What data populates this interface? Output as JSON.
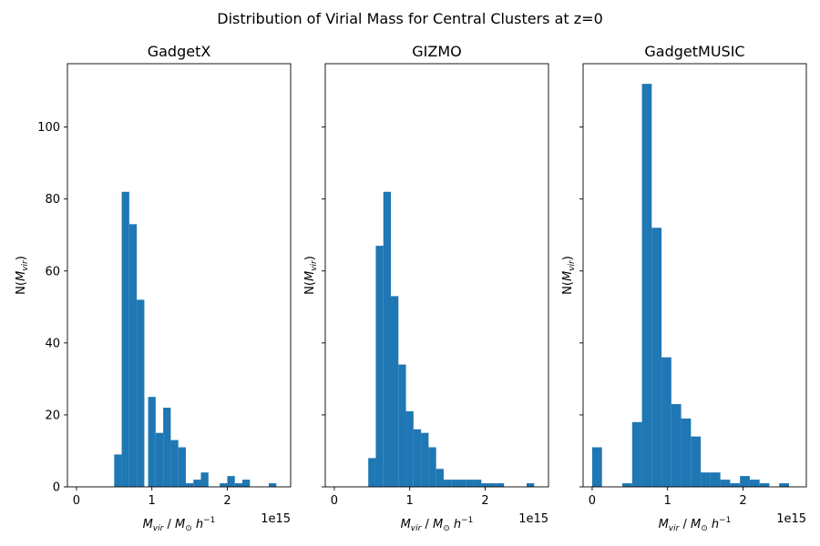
{
  "figure": {
    "suptitle": "Distribution of Virial Mass for Central Clusters at z=0"
  },
  "chart_data": [
    {
      "type": "bar",
      "title": "GadgetX",
      "xlabel": "M_vir / M_⊙ h^-1",
      "ylabel": "N(M_vir)",
      "x_offset_label": "1e15",
      "xlim": [
        -0.12,
        2.84
      ],
      "ylim": [
        0,
        117.6
      ],
      "xticks": [
        0,
        1,
        2
      ],
      "yticks": [
        0,
        20,
        40,
        60,
        80,
        100
      ],
      "color": "#1f77b4",
      "bin_width": 0.1,
      "bins": [
        {
          "x0": 0.5,
          "count": 9
        },
        {
          "x0": 0.6,
          "count": 82
        },
        {
          "x0": 0.7,
          "count": 73
        },
        {
          "x0": 0.8,
          "count": 52
        },
        {
          "x0": 0.95,
          "count": 25
        },
        {
          "x0": 1.05,
          "count": 15
        },
        {
          "x0": 1.15,
          "count": 22
        },
        {
          "x0": 1.25,
          "count": 13
        },
        {
          "x0": 1.35,
          "count": 11
        },
        {
          "x0": 1.45,
          "count": 1
        },
        {
          "x0": 1.55,
          "count": 2
        },
        {
          "x0": 1.65,
          "count": 4
        },
        {
          "x0": 1.9,
          "count": 1
        },
        {
          "x0": 2.0,
          "count": 3
        },
        {
          "x0": 2.1,
          "count": 1
        },
        {
          "x0": 2.2,
          "count": 2
        },
        {
          "x0": 2.55,
          "count": 1
        }
      ]
    },
    {
      "type": "bar",
      "title": "GIZMO",
      "xlabel": "M_vir / M_⊙ h^-1",
      "ylabel": "N(M_vir)",
      "x_offset_label": "1e15",
      "xlim": [
        -0.12,
        2.84
      ],
      "ylim": [
        0,
        117.6
      ],
      "xticks": [
        0,
        1,
        2
      ],
      "yticks": [
        0,
        20,
        40,
        60,
        80,
        100
      ],
      "color": "#1f77b4",
      "bin_width": 0.1,
      "bins": [
        {
          "x0": 0.45,
          "count": 8
        },
        {
          "x0": 0.55,
          "count": 67
        },
        {
          "x0": 0.65,
          "count": 82
        },
        {
          "x0": 0.75,
          "count": 53
        },
        {
          "x0": 0.85,
          "count": 34
        },
        {
          "x0": 0.95,
          "count": 21
        },
        {
          "x0": 1.05,
          "count": 16
        },
        {
          "x0": 1.15,
          "count": 15
        },
        {
          "x0": 1.25,
          "count": 11
        },
        {
          "x0": 1.35,
          "count": 5
        },
        {
          "x0": 1.45,
          "count": 2
        },
        {
          "x0": 1.55,
          "count": 2
        },
        {
          "x0": 1.65,
          "count": 2
        },
        {
          "x0": 1.75,
          "count": 2
        },
        {
          "x0": 1.85,
          "count": 2
        },
        {
          "x0": 1.95,
          "count": 1
        },
        {
          "x0": 2.05,
          "count": 1
        },
        {
          "x0": 2.15,
          "count": 1
        },
        {
          "x0": 2.55,
          "count": 1
        }
      ]
    },
    {
      "type": "bar",
      "title": "GadgetMUSIC",
      "xlabel": "M_vir / M_⊙ h^-1",
      "ylabel": "N(M_vir)",
      "x_offset_label": "1e15",
      "xlim": [
        -0.12,
        2.84
      ],
      "ylim": [
        0,
        117.6
      ],
      "xticks": [
        0,
        1,
        2
      ],
      "yticks": [
        0,
        20,
        40,
        60,
        80,
        100
      ],
      "color": "#1f77b4",
      "bin_width": 0.13,
      "bins": [
        {
          "x0": 0.0,
          "count": 11
        },
        {
          "x0": 0.4,
          "count": 1
        },
        {
          "x0": 0.53,
          "count": 18
        },
        {
          "x0": 0.66,
          "count": 112
        },
        {
          "x0": 0.79,
          "count": 72
        },
        {
          "x0": 0.92,
          "count": 36
        },
        {
          "x0": 1.05,
          "count": 23
        },
        {
          "x0": 1.18,
          "count": 19
        },
        {
          "x0": 1.31,
          "count": 14
        },
        {
          "x0": 1.44,
          "count": 4
        },
        {
          "x0": 1.57,
          "count": 4
        },
        {
          "x0": 1.7,
          "count": 2
        },
        {
          "x0": 1.83,
          "count": 1
        },
        {
          "x0": 1.96,
          "count": 3
        },
        {
          "x0": 2.09,
          "count": 2
        },
        {
          "x0": 2.22,
          "count": 1
        },
        {
          "x0": 2.48,
          "count": 1
        }
      ]
    }
  ]
}
